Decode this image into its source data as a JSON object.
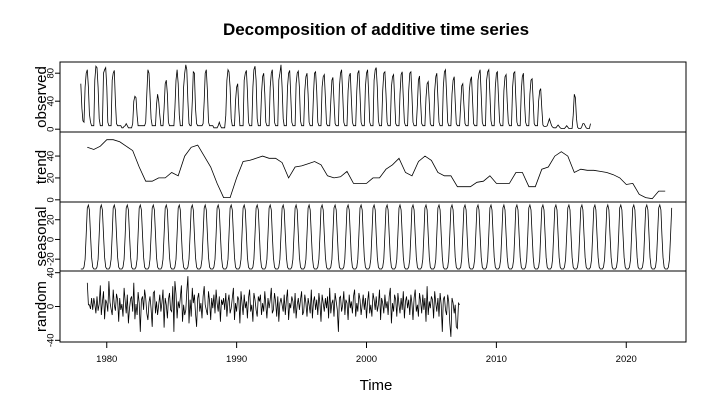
{
  "chart_data": {
    "type": "line",
    "title": "Decomposition of additive time series",
    "xlabel": "Time",
    "x_ticks": [
      1980,
      1990,
      2000,
      2010,
      2020
    ],
    "xlim": [
      1976.4,
      2024.6
    ],
    "grid": false,
    "panels": [
      {
        "name": "observed",
        "ylim": [
          -4,
          96
        ],
        "y_ticks": [
          0,
          40,
          80
        ],
        "series": "observed",
        "x_start": 1978.0,
        "step": 0.08333,
        "values": [
          65,
          30,
          12,
          10,
          60,
          80,
          85,
          60,
          22,
          10,
          5,
          5,
          5,
          70,
          90,
          88,
          60,
          15,
          5,
          5,
          5,
          80,
          85,
          88,
          60,
          10,
          5,
          5,
          5,
          70,
          80,
          84,
          40,
          8,
          5,
          5,
          5,
          5,
          2,
          2,
          4,
          5,
          8,
          5,
          2,
          2,
          2,
          2,
          8,
          40,
          47,
          45,
          20,
          5,
          5,
          5,
          5,
          5,
          5,
          5,
          10,
          50,
          85,
          80,
          50,
          15,
          5,
          5,
          5,
          5,
          35,
          50,
          40,
          20,
          5,
          5,
          5,
          30,
          65,
          70,
          50,
          10,
          5,
          5,
          5,
          5,
          5,
          30,
          70,
          85,
          65,
          20,
          5,
          5,
          5,
          60,
          80,
          92,
          85,
          40,
          8,
          5,
          5,
          40,
          82,
          80,
          30,
          8,
          5,
          5,
          5,
          5,
          5,
          8,
          40,
          80,
          85,
          55,
          10,
          5,
          5,
          5,
          5,
          2,
          2,
          2,
          2,
          5,
          10,
          5,
          2,
          2,
          2,
          2,
          20,
          70,
          85,
          82,
          60,
          15,
          5,
          5,
          5,
          40,
          60,
          65,
          30,
          5,
          5,
          5,
          5,
          70,
          80,
          84,
          55,
          10,
          5,
          5,
          5,
          60,
          85,
          90,
          70,
          15,
          5,
          5,
          5,
          50,
          75,
          80,
          50,
          10,
          5,
          5,
          5,
          60,
          80,
          85,
          55,
          10,
          5,
          5,
          5,
          70,
          80,
          92,
          60,
          15,
          5,
          5,
          5,
          60,
          80,
          84,
          50,
          10,
          5,
          5,
          5,
          65,
          80,
          83,
          60,
          12,
          5,
          5,
          5,
          55,
          75,
          80,
          50,
          10,
          5,
          5,
          5,
          50,
          80,
          82,
          55,
          10,
          5,
          5,
          5,
          60,
          75,
          78,
          45,
          8,
          5,
          5,
          5,
          40,
          70,
          74,
          40,
          8,
          5,
          5,
          5,
          60,
          80,
          85,
          50,
          10,
          5,
          5,
          5,
          55,
          76,
          80,
          45,
          10,
          5,
          5,
          5,
          55,
          80,
          84,
          50,
          10,
          5,
          5,
          5,
          60,
          80,
          85,
          50,
          10,
          5,
          5,
          5,
          70,
          85,
          88,
          60,
          12,
          5,
          5,
          5,
          55,
          80,
          82,
          50,
          10,
          5,
          5,
          5,
          60,
          75,
          78,
          45,
          8,
          5,
          5,
          5,
          50,
          78,
          82,
          45,
          10,
          5,
          5,
          5,
          55,
          80,
          82,
          50,
          10,
          5,
          5,
          5,
          35,
          70,
          76,
          40,
          8,
          5,
          5,
          5,
          45,
          65,
          68,
          38,
          8,
          5,
          5,
          5,
          55,
          75,
          80,
          45,
          10,
          5,
          5,
          5,
          60,
          82,
          85,
          50,
          10,
          5,
          5,
          5,
          50,
          70,
          75,
          40,
          8,
          5,
          5,
          5,
          35,
          62,
          65,
          35,
          8,
          5,
          5,
          5,
          55,
          70,
          75,
          40,
          8,
          5,
          5,
          5,
          70,
          80,
          85,
          50,
          10,
          5,
          5,
          5,
          70,
          82,
          85,
          50,
          12,
          5,
          5,
          5,
          60,
          80,
          82,
          45,
          10,
          5,
          5,
          5,
          55,
          75,
          78,
          40,
          10,
          5,
          5,
          5,
          60,
          80,
          82,
          45,
          10,
          5,
          5,
          5,
          55,
          75,
          80,
          40,
          10,
          5,
          5,
          5,
          50,
          70,
          72,
          40,
          8,
          5,
          5,
          5,
          40,
          55,
          58,
          30,
          6,
          4,
          4,
          4,
          5,
          10,
          15,
          10,
          5,
          3,
          2,
          2,
          2,
          4,
          6,
          4,
          2,
          1,
          1,
          1,
          1,
          3,
          5,
          3,
          1,
          1,
          1,
          1,
          20,
          50,
          45,
          15,
          3,
          1,
          1,
          1,
          4,
          8,
          8,
          5,
          2,
          1,
          1,
          1,
          8
        ]
      },
      {
        "name": "trend",
        "ylim": [
          -2,
          62
        ],
        "y_ticks": [
          0,
          20,
          40
        ],
        "series": "trend",
        "points": [
          [
            1978.5,
            48
          ],
          [
            1979.0,
            46
          ],
          [
            1979.5,
            49
          ],
          [
            1980.0,
            55
          ],
          [
            1980.5,
            55
          ],
          [
            1981.0,
            53
          ],
          [
            1981.5,
            49
          ],
          [
            1982.0,
            45
          ],
          [
            1982.5,
            30
          ],
          [
            1983.0,
            17
          ],
          [
            1983.5,
            17
          ],
          [
            1984.0,
            20
          ],
          [
            1984.5,
            20
          ],
          [
            1985.0,
            25
          ],
          [
            1985.5,
            22
          ],
          [
            1986.0,
            40
          ],
          [
            1986.5,
            48
          ],
          [
            1987.0,
            50
          ],
          [
            1987.5,
            40
          ],
          [
            1988.0,
            30
          ],
          [
            1988.5,
            15
          ],
          [
            1989.0,
            2
          ],
          [
            1989.5,
            2
          ],
          [
            1990.0,
            20
          ],
          [
            1990.5,
            35
          ],
          [
            1991.0,
            36
          ],
          [
            1991.5,
            38
          ],
          [
            1992.0,
            40
          ],
          [
            1992.5,
            38
          ],
          [
            1993.0,
            38
          ],
          [
            1993.5,
            34
          ],
          [
            1994.0,
            20
          ],
          [
            1994.5,
            30
          ],
          [
            1995.0,
            31
          ],
          [
            1995.5,
            33
          ],
          [
            1996.0,
            35
          ],
          [
            1996.5,
            32
          ],
          [
            1997.0,
            22
          ],
          [
            1997.5,
            20
          ],
          [
            1998.0,
            21
          ],
          [
            1998.5,
            26
          ],
          [
            1999.0,
            15
          ],
          [
            1999.5,
            15
          ],
          [
            2000.0,
            15
          ],
          [
            2000.5,
            20
          ],
          [
            2001.0,
            20
          ],
          [
            2001.5,
            28
          ],
          [
            2002.0,
            32
          ],
          [
            2002.5,
            38
          ],
          [
            2003.0,
            25
          ],
          [
            2003.5,
            22
          ],
          [
            2004.0,
            35
          ],
          [
            2004.5,
            40
          ],
          [
            2005.0,
            36
          ],
          [
            2005.5,
            25
          ],
          [
            2006.0,
            22
          ],
          [
            2006.5,
            22
          ],
          [
            2007.0,
            12
          ],
          [
            2007.5,
            12
          ],
          [
            2008.0,
            12
          ],
          [
            2008.5,
            16
          ],
          [
            2009.0,
            17
          ],
          [
            2009.5,
            22
          ],
          [
            2010.0,
            15
          ],
          [
            2010.5,
            15
          ],
          [
            2011.0,
            15
          ],
          [
            2011.5,
            25
          ],
          [
            2012.0,
            25
          ],
          [
            2012.5,
            12
          ],
          [
            2013.0,
            12
          ],
          [
            2013.5,
            28
          ],
          [
            2014.0,
            30
          ],
          [
            2014.5,
            40
          ],
          [
            2015.0,
            44
          ],
          [
            2015.5,
            40
          ],
          [
            2016.0,
            25
          ],
          [
            2016.5,
            28
          ],
          [
            2017.0,
            27
          ],
          [
            2017.5,
            27
          ],
          [
            2018.0,
            26
          ],
          [
            2018.5,
            25
          ],
          [
            2019.0,
            23
          ],
          [
            2019.5,
            20
          ],
          [
            2020.0,
            14
          ],
          [
            2020.5,
            15
          ],
          [
            2021.0,
            5
          ],
          [
            2021.5,
            2
          ],
          [
            2022.0,
            1
          ],
          [
            2022.5,
            8
          ],
          [
            2023.0,
            8
          ]
        ]
      },
      {
        "name": "seasonal",
        "ylim": [
          -32,
          38
        ],
        "y_ticks": [
          -20,
          0,
          20
        ],
        "y_tick_labels": [
          "-20",
          "0",
          "20"
        ],
        "series": "seasonal",
        "cycle": [
          -30,
          -30,
          -30,
          -28,
          -20,
          5,
          32,
          35,
          30,
          5,
          -18,
          -28
        ],
        "x_start": 1978.0,
        "step": 0.08333
      },
      {
        "name": "random",
        "ylim": [
          -42,
          42
        ],
        "y_ticks": [
          -40,
          0,
          40
        ],
        "y_tick_labels": [
          "-40",
          "0",
          "40"
        ],
        "series": "random",
        "x_start": 1978.5,
        "step": 0.08333,
        "values": [
          28,
          2,
          2,
          -3,
          10,
          -4,
          10,
          3,
          -8,
          12,
          -5,
          3,
          25,
          -10,
          5,
          18,
          -15,
          8,
          4,
          -6,
          30,
          5,
          -3,
          -10,
          20,
          2,
          -5,
          15,
          8,
          -18,
          10,
          -4,
          3,
          -12,
          22,
          6,
          -8,
          14,
          -20,
          -2,
          9,
          12,
          -6,
          28,
          -15,
          3,
          -10,
          17,
          4,
          -30,
          8,
          12,
          -4,
          20,
          10,
          -8,
          -16,
          5,
          12,
          -3,
          -24,
          16,
          18,
          -8,
          6,
          -10,
          2,
          14,
          -6,
          4,
          20,
          -25,
          10,
          2,
          -14,
          8,
          16,
          -4,
          -6,
          24,
          -30,
          30,
          15,
          -14,
          6,
          -2,
          10,
          25,
          -18,
          2,
          -10,
          -4,
          18,
          36,
          -20,
          8,
          -12,
          22,
          4,
          14,
          -8,
          -24,
          10,
          16,
          -6,
          4,
          -14,
          12,
          24,
          2,
          -4,
          -10,
          18,
          6,
          -16,
          10,
          -2,
          14,
          -8,
          20,
          4,
          -6,
          12,
          -18,
          8,
          2,
          10,
          -4,
          16,
          -12,
          6,
          14,
          -8,
          -2,
          10,
          22,
          -16,
          4,
          -6,
          12,
          8,
          -20,
          18,
          4,
          -10,
          14,
          -2,
          6,
          -14,
          10,
          20,
          -6,
          2,
          -18,
          16,
          8,
          -4,
          -12,
          12,
          6,
          14,
          -10,
          4,
          -6,
          18,
          2,
          -14,
          10,
          -2,
          8,
          22,
          -8,
          -4,
          16,
          6,
          -12,
          12,
          -18,
          4,
          10,
          2,
          -6,
          14,
          -10,
          8,
          20,
          -16,
          4,
          -2,
          12,
          6,
          -8,
          16,
          -14,
          2,
          10,
          -4,
          8,
          18,
          -10,
          -6,
          14,
          4,
          -12,
          10,
          2,
          -8,
          20,
          -14,
          6,
          12,
          -4,
          8,
          -10,
          16,
          2,
          -18,
          14,
          4,
          -6,
          10,
          -2,
          12,
          -14,
          22,
          -8,
          4,
          8,
          -12,
          16,
          6,
          -4,
          -30,
          10,
          12,
          -6,
          2,
          18,
          -10,
          8,
          4,
          -16,
          14,
          -2,
          6,
          -8,
          12,
          20,
          -12,
          4,
          -6,
          16,
          8,
          -10,
          2,
          14,
          -4,
          10,
          -14,
          6,
          18,
          -8,
          2,
          -12,
          16,
          8,
          -4,
          12,
          -6,
          2,
          20,
          -16,
          10,
          4,
          -8,
          14,
          -2,
          6,
          -10,
          12,
          22,
          -20,
          4,
          -6,
          14,
          8,
          -12,
          16,
          2,
          -8,
          10,
          -4,
          18,
          -14,
          6,
          12,
          -2,
          8,
          -10,
          14,
          4,
          -16,
          10,
          20,
          -6,
          2,
          -12,
          16,
          6,
          -8,
          14,
          -4,
          10,
          -18,
          24,
          -10,
          6,
          -2,
          12,
          8,
          -14,
          18,
          4,
          -6,
          10,
          -12,
          16,
          2,
          -30,
          8,
          12,
          -4,
          -10,
          14,
          6,
          -20,
          -36,
          10,
          4,
          -8,
          2,
          -24,
          -26,
          4,
          2
        ]
      }
    ]
  }
}
